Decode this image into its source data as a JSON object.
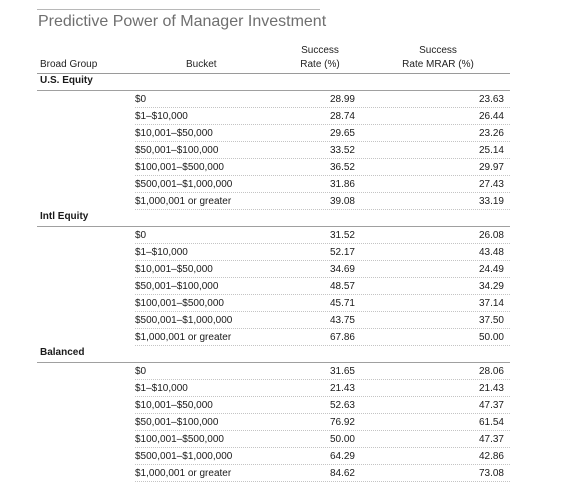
{
  "title": "Predictive Power of Manager Investment",
  "headers": {
    "group": "Broad Group",
    "bucket": "Bucket",
    "success_rate_1": "Success",
    "success_rate_2": "Rate (%)",
    "mrar_1": "Success",
    "mrar_2": "Rate MRAR (%)"
  },
  "groups": [
    {
      "name": "U.S. Equity",
      "rows": [
        {
          "bucket": "$0",
          "rate": "28.99",
          "mrar": "23.63"
        },
        {
          "bucket": "$1–$10,000",
          "rate": "28.74",
          "mrar": "26.44"
        },
        {
          "bucket": "$10,001–$50,000",
          "rate": "29.65",
          "mrar": "23.26"
        },
        {
          "bucket": "$50,001–$100,000",
          "rate": "33.52",
          "mrar": "25.14"
        },
        {
          "bucket": "$100,001–$500,000",
          "rate": "36.52",
          "mrar": "29.97"
        },
        {
          "bucket": "$500,001–$1,000,000",
          "rate": "31.86",
          "mrar": "27.43"
        },
        {
          "bucket": "$1,000,001 or greater",
          "rate": "39.08",
          "mrar": "33.19"
        }
      ]
    },
    {
      "name": "Intl Equity",
      "rows": [
        {
          "bucket": "$0",
          "rate": "31.52",
          "mrar": "26.08"
        },
        {
          "bucket": "$1–$10,000",
          "rate": "52.17",
          "mrar": "43.48"
        },
        {
          "bucket": "$10,001–$50,000",
          "rate": "34.69",
          "mrar": "24.49"
        },
        {
          "bucket": "$50,001–$100,000",
          "rate": "48.57",
          "mrar": "34.29"
        },
        {
          "bucket": "$100,001–$500,000",
          "rate": "45.71",
          "mrar": "37.14"
        },
        {
          "bucket": "$500,001–$1,000,000",
          "rate": "43.75",
          "mrar": "37.50"
        },
        {
          "bucket": "$1,000,001 or greater",
          "rate": "67.86",
          "mrar": "50.00"
        }
      ]
    },
    {
      "name": "Balanced",
      "rows": [
        {
          "bucket": "$0",
          "rate": "31.65",
          "mrar": "28.06"
        },
        {
          "bucket": "$1–$10,000",
          "rate": "21.43",
          "mrar": "21.43"
        },
        {
          "bucket": "$10,001–$50,000",
          "rate": "52.63",
          "mrar": "47.37"
        },
        {
          "bucket": "$50,001–$100,000",
          "rate": "76.92",
          "mrar": "61.54"
        },
        {
          "bucket": "$100,001–$500,000",
          "rate": "50.00",
          "mrar": "47.37"
        },
        {
          "bucket": "$500,001–$1,000,000",
          "rate": "64.29",
          "mrar": "42.86"
        },
        {
          "bucket": "$1,000,001 or greater",
          "rate": "84.62",
          "mrar": "73.08"
        }
      ]
    }
  ]
}
